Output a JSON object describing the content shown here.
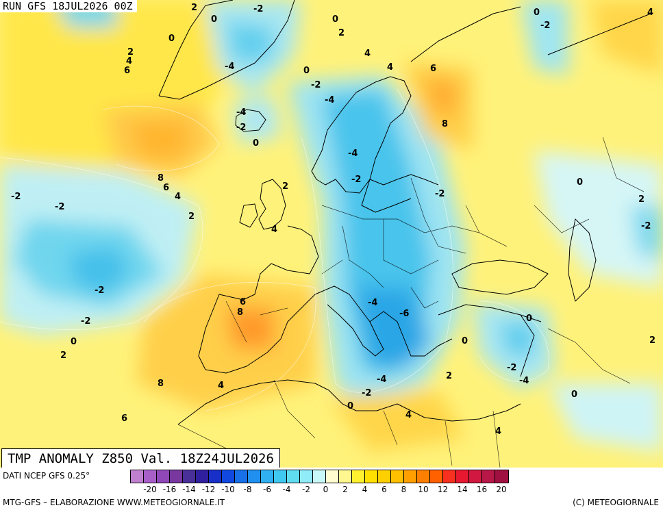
{
  "header": {
    "run": "RUN GFS 18JUL2026 00Z"
  },
  "title": "TMP ANOMALY Z850 Val. 18Z24JUL2026",
  "footer": {
    "source": "DATI NCEP GFS 0.25°",
    "credit": "MTG-GFS – ELABORAZIONE WWW.METEOGIORNALE.IT",
    "copyright": "(C) METEOGIORNALE"
  },
  "legend": {
    "colors": [
      "#c080d0",
      "#a860c8",
      "#9048b8",
      "#7838a0",
      "#483098",
      "#3020a0",
      "#1830c8",
      "#1048e0",
      "#1870e8",
      "#2090f0",
      "#30b0f0",
      "#40c8f0",
      "#60dcf0",
      "#90ecf8",
      "#c8f8f8",
      "#fffdd0",
      "#fff890",
      "#fff030",
      "#ffe000",
      "#ffd000",
      "#ffc000",
      "#ffa000",
      "#ff8000",
      "#ff6000",
      "#f83020",
      "#e81830",
      "#d01840",
      "#b81848",
      "#a01040"
    ],
    "ticks": [
      "-20",
      "-16",
      "-14",
      "-12",
      "-10",
      "-8",
      "-6",
      "-4",
      "-2",
      "0",
      "2",
      "4",
      "6",
      "8",
      "10",
      "12",
      "14",
      "16",
      "20"
    ]
  },
  "contour_labels": [
    "2",
    "0",
    "-2",
    "4",
    "0",
    "0",
    "-2",
    "2",
    "2",
    "4",
    "4",
    "6",
    "0",
    "-4",
    "6",
    "-2",
    "0",
    "4",
    "-2",
    "-4",
    "-4",
    "-2",
    "8",
    "0",
    "8",
    "6",
    "4",
    "-4",
    "-2",
    "-2",
    "-2",
    "-2",
    "2",
    "0",
    "2",
    "4",
    "2",
    "-2",
    "6",
    "8",
    "-4",
    "-4",
    "-6",
    "-2",
    "0",
    "0",
    "0",
    "2",
    "2",
    "-2",
    "-4",
    "2",
    "8",
    "4",
    "0",
    "-2",
    "6",
    "4",
    "0",
    "4"
  ]
}
